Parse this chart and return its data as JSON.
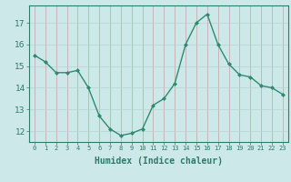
{
  "x": [
    0,
    1,
    2,
    3,
    4,
    5,
    6,
    7,
    8,
    9,
    10,
    11,
    12,
    13,
    14,
    15,
    16,
    17,
    18,
    19,
    20,
    21,
    22,
    23
  ],
  "y": [
    15.5,
    15.2,
    14.7,
    14.7,
    14.8,
    14.0,
    12.7,
    12.1,
    11.8,
    11.9,
    12.1,
    13.2,
    13.5,
    14.2,
    16.0,
    17.0,
    17.4,
    16.0,
    15.1,
    14.6,
    14.5,
    14.1,
    14.0,
    13.7
  ],
  "line_color": "#2e8b70",
  "marker": "D",
  "marker_size": 2.0,
  "bg_color": "#cce8e8",
  "grid_color_v": "#c8a0a0",
  "grid_color_h": "#b8d0d0",
  "xlabel": "Humidex (Indice chaleur)",
  "ylim": [
    11.5,
    17.8
  ],
  "xlim": [
    -0.5,
    23.5
  ],
  "yticks": [
    12,
    13,
    14,
    15,
    16,
    17
  ],
  "xticks": [
    0,
    1,
    2,
    3,
    4,
    5,
    6,
    7,
    8,
    9,
    10,
    11,
    12,
    13,
    14,
    15,
    16,
    17,
    18,
    19,
    20,
    21,
    22,
    23
  ],
  "tick_color": "#2e7b68",
  "label_color": "#2e7b68",
  "xlabel_fontsize": 7,
  "ytick_fontsize": 6.5,
  "xtick_fontsize": 5.0,
  "linewidth": 1.0
}
